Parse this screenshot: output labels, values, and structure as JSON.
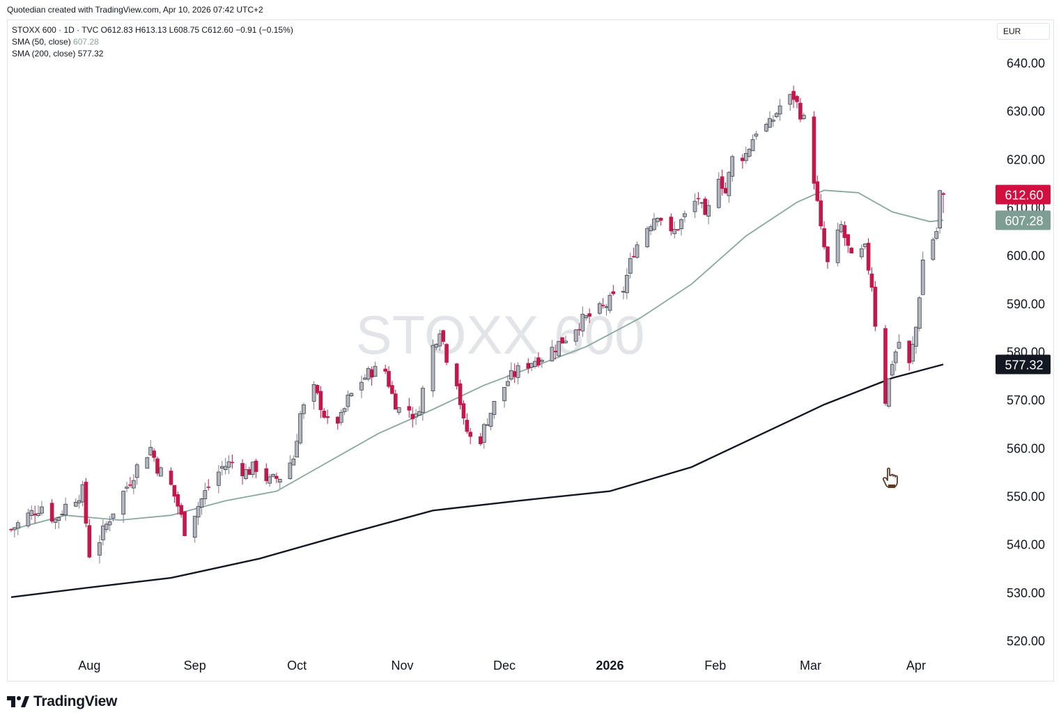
{
  "header": {
    "attribution": "Quotedian created with TradingView.com, Apr 10, 2026 07:42 UTC+2"
  },
  "legend": {
    "symbol_line": "STOXX 600 · 1D · TVC   O612.83   H613.13   L608.75   C612.60   −0.91 (−0.15%)",
    "sma50_label": "SMA (50, close)",
    "sma50_value": "607.28",
    "sma200_label": "SMA (200, close)",
    "sma200_value": "577.32"
  },
  "currency": "EUR",
  "watermark": "STOXX 600",
  "footer": {
    "brand": "TradingView"
  },
  "colors": {
    "up": "#b2b5be",
    "down": "#c2184b",
    "wick_up": "#787b86",
    "sma50": "#88a89c",
    "sma200": "#131722",
    "last_price_tag": "#d1103f",
    "sma50_tag": "#7e9e93",
    "sma200_tag": "#131722"
  },
  "chart_data": {
    "type": "candlestick",
    "title": "STOXX 600",
    "interval": "1D",
    "source": "TVC",
    "ylim": [
      515,
      645
    ],
    "y_ticks": [
      "640.00",
      "630.00",
      "620.00",
      "610.00",
      "600.00",
      "590.00",
      "580.00",
      "570.00",
      "560.00",
      "550.00",
      "540.00",
      "530.00",
      "520.00"
    ],
    "x_ticks": [
      {
        "label": "Aug",
        "date": "2025-08-01"
      },
      {
        "label": "Sep",
        "date": "2025-09-01"
      },
      {
        "label": "Oct",
        "date": "2025-10-01"
      },
      {
        "label": "Nov",
        "date": "2025-11-01"
      },
      {
        "label": "Dec",
        "date": "2025-12-01"
      },
      {
        "label": "2026",
        "date": "2026-01-01"
      },
      {
        "label": "Feb",
        "date": "2026-02-01"
      },
      {
        "label": "Mar",
        "date": "2026-03-01"
      },
      {
        "label": "Apr",
        "date": "2026-04-01"
      }
    ],
    "last": {
      "open": 612.83,
      "high": 613.13,
      "low": 608.75,
      "close": 612.6,
      "change": -0.91,
      "change_pct": -0.15
    },
    "price_tags": [
      {
        "name": "last",
        "value": 612.6,
        "label": "612.60"
      },
      {
        "name": "sma50",
        "value": 607.28,
        "label": "607.28"
      },
      {
        "name": "sma200",
        "value": 577.32,
        "label": "577.32"
      }
    ],
    "close_path": [
      [
        "2025-07-09",
        543
      ],
      [
        "2025-07-14",
        546
      ],
      [
        "2025-07-18",
        548
      ],
      [
        "2025-07-22",
        545
      ],
      [
        "2025-07-25",
        548
      ],
      [
        "2025-07-30",
        551
      ],
      [
        "2025-08-01",
        538
      ],
      [
        "2025-08-04",
        541
      ],
      [
        "2025-08-06",
        544
      ],
      [
        "2025-08-08",
        547
      ],
      [
        "2025-08-12",
        552
      ],
      [
        "2025-08-15",
        556
      ],
      [
        "2025-08-19",
        560
      ],
      [
        "2025-08-21",
        556
      ],
      [
        "2025-08-25",
        552
      ],
      [
        "2025-08-27",
        548
      ],
      [
        "2025-08-29",
        543
      ],
      [
        "2025-09-02",
        548
      ],
      [
        "2025-09-05",
        552
      ],
      [
        "2025-09-09",
        556
      ],
      [
        "2025-09-12",
        557
      ],
      [
        "2025-09-16",
        555
      ],
      [
        "2025-09-19",
        556
      ],
      [
        "2025-09-23",
        553
      ],
      [
        "2025-09-26",
        554
      ],
      [
        "2025-09-30",
        558
      ],
      [
        "2025-10-02",
        567
      ],
      [
        "2025-10-06",
        572
      ],
      [
        "2025-10-08",
        569
      ],
      [
        "2025-10-10",
        565
      ],
      [
        "2025-10-14",
        566
      ],
      [
        "2025-10-16",
        570
      ],
      [
        "2025-10-20",
        574
      ],
      [
        "2025-10-23",
        576
      ],
      [
        "2025-10-27",
        576
      ],
      [
        "2025-10-29",
        571
      ],
      [
        "2025-10-31",
        568
      ],
      [
        "2025-11-03",
        568
      ],
      [
        "2025-11-05",
        566
      ],
      [
        "2025-11-07",
        572
      ],
      [
        "2025-11-10",
        581
      ],
      [
        "2025-11-12",
        585
      ],
      [
        "2025-11-14",
        579
      ],
      [
        "2025-11-17",
        574
      ],
      [
        "2025-11-19",
        565
      ],
      [
        "2025-11-21",
        562
      ],
      [
        "2025-11-24",
        562
      ],
      [
        "2025-11-26",
        566
      ],
      [
        "2025-11-28",
        569
      ],
      [
        "2025-12-02",
        574
      ],
      [
        "2025-12-05",
        576
      ],
      [
        "2025-12-09",
        578
      ],
      [
        "2025-12-12",
        579
      ],
      [
        "2025-12-16",
        581
      ],
      [
        "2025-12-19",
        583
      ],
      [
        "2025-12-23",
        586
      ],
      [
        "2025-12-30",
        589
      ],
      [
        "2026-01-05",
        593
      ],
      [
        "2026-01-08",
        601
      ],
      [
        "2026-01-12",
        606
      ],
      [
        "2026-01-15",
        609
      ],
      [
        "2026-01-19",
        604
      ],
      [
        "2026-01-21",
        606
      ],
      [
        "2026-01-23",
        608
      ],
      [
        "2026-01-27",
        612
      ],
      [
        "2026-01-29",
        607
      ],
      [
        "2026-02-02",
        617
      ],
      [
        "2026-02-04",
        613
      ],
      [
        "2026-02-06",
        620
      ],
      [
        "2026-02-10",
        621
      ],
      [
        "2026-02-13",
        626
      ],
      [
        "2026-02-17",
        627
      ],
      [
        "2026-02-20",
        631
      ],
      [
        "2026-02-24",
        633
      ],
      [
        "2026-02-27",
        628
      ],
      [
        "2026-03-02",
        616
      ],
      [
        "2026-03-04",
        605
      ],
      [
        "2026-03-06",
        598
      ],
      [
        "2026-03-10",
        606
      ],
      [
        "2026-03-13",
        599
      ],
      [
        "2026-03-17",
        601
      ],
      [
        "2026-03-19",
        594
      ],
      [
        "2026-03-20",
        586
      ],
      [
        "2026-03-23",
        570
      ],
      [
        "2026-03-25",
        578
      ],
      [
        "2026-03-27",
        582
      ],
      [
        "2026-03-30",
        577
      ],
      [
        "2026-04-01",
        585
      ],
      [
        "2026-04-03",
        599
      ],
      [
        "2026-04-07",
        605
      ],
      [
        "2026-04-08",
        613
      ],
      [
        "2026-04-09",
        612.6
      ]
    ],
    "sma50_path": [
      [
        "2025-07-09",
        543
      ],
      [
        "2025-07-25",
        546
      ],
      [
        "2025-08-10",
        545
      ],
      [
        "2025-08-25",
        546
      ],
      [
        "2025-09-10",
        549
      ],
      [
        "2025-09-25",
        551
      ],
      [
        "2025-10-10",
        557
      ],
      [
        "2025-10-25",
        563
      ],
      [
        "2025-11-10",
        568
      ],
      [
        "2025-11-25",
        573
      ],
      [
        "2025-12-10",
        577
      ],
      [
        "2025-12-25",
        581
      ],
      [
        "2026-01-10",
        587
      ],
      [
        "2026-01-25",
        594
      ],
      [
        "2026-02-10",
        604
      ],
      [
        "2026-02-25",
        611
      ],
      [
        "2026-03-05",
        613.5
      ],
      [
        "2026-03-15",
        613
      ],
      [
        "2026-03-25",
        609
      ],
      [
        "2026-04-05",
        607
      ],
      [
        "2026-04-09",
        607.28
      ]
    ],
    "sma200_path": [
      [
        "2025-07-09",
        529
      ],
      [
        "2025-08-01",
        531
      ],
      [
        "2025-08-25",
        533
      ],
      [
        "2025-09-20",
        537
      ],
      [
        "2025-10-15",
        542
      ],
      [
        "2025-11-10",
        547
      ],
      [
        "2025-12-05",
        549
      ],
      [
        "2026-01-01",
        551
      ],
      [
        "2026-01-25",
        556
      ],
      [
        "2026-02-15",
        563
      ],
      [
        "2026-03-05",
        569
      ],
      [
        "2026-03-25",
        574.5
      ],
      [
        "2026-04-09",
        577.32
      ]
    ]
  }
}
